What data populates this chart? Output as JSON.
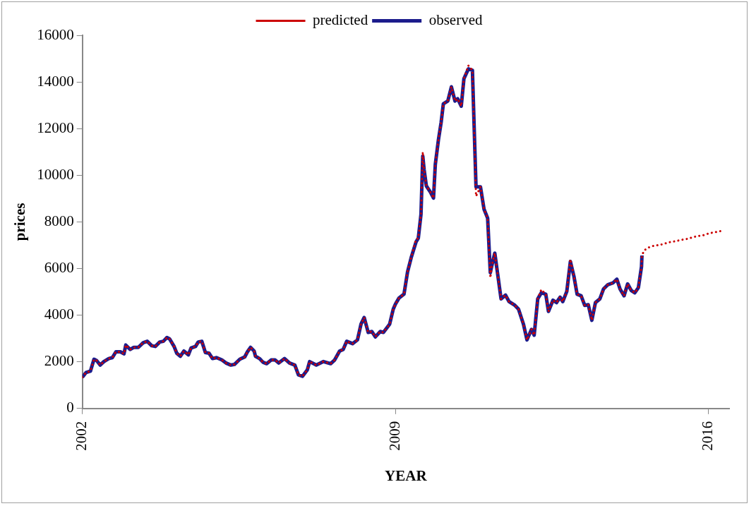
{
  "chart_data": {
    "type": "line",
    "xlabel": "YEAR",
    "ylabel": "prices",
    "xlim": [
      2002,
      2016.46
    ],
    "xticks": [
      2002,
      2009,
      2016
    ],
    "ylim": [
      0,
      16000
    ],
    "yticks": [
      0,
      2000,
      4000,
      6000,
      8000,
      10000,
      12000,
      14000,
      16000
    ],
    "grid": false,
    "legend": "top",
    "marker": "none",
    "series": [
      {
        "name": "observed",
        "color": "#1c1c8c",
        "line_style": "solid",
        "x": [
          2002.0,
          2002.08,
          2002.18,
          2002.26,
          2002.32,
          2002.4,
          2002.48,
          2002.59,
          2002.67,
          2002.75,
          2002.85,
          2002.93,
          2002.97,
          2003.07,
          2003.15,
          2003.25,
          2003.36,
          2003.45,
          2003.55,
          2003.63,
          2003.73,
          2003.81,
          2003.89,
          2003.95,
          2004.05,
          2004.11,
          2004.19,
          2004.27,
          2004.37,
          2004.43,
          2004.53,
          2004.59,
          2004.67,
          2004.75,
          2004.83,
          2004.91,
          2005.0,
          2005.12,
          2005.21,
          2005.32,
          2005.4,
          2005.52,
          2005.63,
          2005.69,
          2005.76,
          2005.84,
          2005.87,
          2005.96,
          2006.04,
          2006.12,
          2006.22,
          2006.31,
          2006.39,
          2006.52,
          2006.63,
          2006.75,
          2006.83,
          2006.92,
          2007.03,
          2007.08,
          2007.23,
          2007.39,
          2007.55,
          2007.64,
          2007.75,
          2007.83,
          2007.91,
          2008.04,
          2008.15,
          2008.23,
          2008.3,
          2008.39,
          2008.47,
          2008.55,
          2008.66,
          2008.73,
          2008.87,
          2008.95,
          2009.0,
          2009.08,
          2009.19,
          2009.27,
          2009.35,
          2009.46,
          2009.51,
          2009.57,
          2009.61,
          2009.64,
          2009.69,
          2009.78,
          2009.85,
          2009.89,
          2009.96,
          2010.02,
          2010.07,
          2010.17,
          2010.25,
          2010.33,
          2010.39,
          2010.47,
          2010.53,
          2010.63,
          2010.72,
          2010.8,
          2010.9,
          2010.98,
          2011.06,
          2011.12,
          2011.16,
          2011.22,
          2011.3,
          2011.36,
          2011.46,
          2011.54,
          2011.67,
          2011.75,
          2011.86,
          2011.94,
          2012.04,
          2012.1,
          2012.18,
          2012.26,
          2012.36,
          2012.42,
          2012.52,
          2012.6,
          2012.68,
          2012.74,
          2012.83,
          2012.91,
          2012.99,
          2013.06,
          2013.15,
          2013.23,
          2013.31,
          2013.39,
          2013.47,
          2013.57,
          2013.65,
          2013.75,
          2013.86,
          2013.95,
          2014.02,
          2014.11,
          2014.19,
          2014.27,
          2014.35,
          2014.43,
          2014.5,
          2014.51
        ],
        "values": [
          1340,
          1540,
          1600,
          2110,
          2050,
          1860,
          2010,
          2140,
          2180,
          2430,
          2430,
          2340,
          2720,
          2530,
          2620,
          2620,
          2820,
          2880,
          2690,
          2660,
          2850,
          2880,
          3040,
          2980,
          2660,
          2370,
          2240,
          2460,
          2300,
          2590,
          2660,
          2850,
          2880,
          2400,
          2370,
          2140,
          2180,
          2080,
          1950,
          1860,
          1890,
          2110,
          2210,
          2430,
          2620,
          2460,
          2240,
          2140,
          1980,
          1920,
          2080,
          2080,
          1950,
          2140,
          1950,
          1860,
          1440,
          1380,
          1660,
          2010,
          1860,
          2010,
          1920,
          2080,
          2460,
          2530,
          2880,
          2780,
          2940,
          3620,
          3900,
          3260,
          3300,
          3070,
          3300,
          3260,
          3620,
          4260,
          4480,
          4740,
          4900,
          5860,
          6460,
          7140,
          7300,
          8320,
          10820,
          10240,
          9540,
          9280,
          9020,
          10460,
          11520,
          12260,
          13060,
          13180,
          13790,
          13180,
          13280,
          12960,
          14140,
          14560,
          14500,
          9500,
          9500,
          8540,
          8160,
          5820,
          6180,
          6660,
          5540,
          4700,
          4860,
          4580,
          4420,
          4260,
          3620,
          2940,
          3390,
          3140,
          4700,
          4960,
          4900,
          4160,
          4640,
          4540,
          4770,
          4580,
          5020,
          6300,
          5660,
          4900,
          4830,
          4420,
          4450,
          3780,
          4540,
          4700,
          5120,
          5310,
          5380,
          5540,
          5120,
          4830,
          5340,
          5060,
          4960,
          5180,
          6080,
          6560
        ]
      },
      {
        "name": "predicted",
        "color": "#cc0000",
        "line_style": "dotted",
        "x": [
          2002.0,
          2002.08,
          2002.18,
          2002.26,
          2002.32,
          2002.4,
          2002.48,
          2002.59,
          2002.67,
          2002.75,
          2002.85,
          2002.93,
          2002.97,
          2003.07,
          2003.15,
          2003.25,
          2003.36,
          2003.45,
          2003.55,
          2003.63,
          2003.73,
          2003.81,
          2003.89,
          2003.95,
          2004.05,
          2004.11,
          2004.19,
          2004.27,
          2004.37,
          2004.43,
          2004.53,
          2004.59,
          2004.67,
          2004.75,
          2004.83,
          2004.91,
          2005.0,
          2005.12,
          2005.21,
          2005.32,
          2005.4,
          2005.52,
          2005.63,
          2005.69,
          2005.76,
          2005.84,
          2005.87,
          2005.96,
          2006.04,
          2006.12,
          2006.22,
          2006.31,
          2006.39,
          2006.52,
          2006.63,
          2006.75,
          2006.83,
          2006.92,
          2007.03,
          2007.08,
          2007.23,
          2007.39,
          2007.55,
          2007.64,
          2007.75,
          2007.83,
          2007.91,
          2008.04,
          2008.15,
          2008.23,
          2008.3,
          2008.39,
          2008.47,
          2008.55,
          2008.66,
          2008.73,
          2008.87,
          2008.95,
          2009.0,
          2009.08,
          2009.19,
          2009.27,
          2009.35,
          2009.46,
          2009.51,
          2009.57,
          2009.61,
          2009.64,
          2009.69,
          2009.78,
          2009.85,
          2009.89,
          2009.96,
          2010.02,
          2010.07,
          2010.17,
          2010.25,
          2010.33,
          2010.39,
          2010.47,
          2010.53,
          2010.63,
          2010.72,
          2010.8,
          2010.9,
          2010.98,
          2011.06,
          2011.12,
          2011.16,
          2011.22,
          2011.3,
          2011.36,
          2011.46,
          2011.54,
          2011.67,
          2011.75,
          2011.86,
          2011.94,
          2012.04,
          2012.1,
          2012.18,
          2012.26,
          2012.36,
          2012.42,
          2012.52,
          2012.6,
          2012.68,
          2012.74,
          2012.83,
          2012.91,
          2012.99,
          2013.06,
          2013.15,
          2013.23,
          2013.31,
          2013.39,
          2013.47,
          2013.57,
          2013.65,
          2013.75,
          2013.86,
          2013.95,
          2014.02,
          2014.11,
          2014.19,
          2014.27,
          2014.35,
          2014.43,
          2014.5,
          2014.51,
          2014.56,
          2014.67,
          2014.78,
          2014.91,
          2015.02,
          2015.15,
          2015.26,
          2015.39,
          2015.5,
          2015.63,
          2015.74,
          2015.87,
          2015.98,
          2016.11,
          2016.22,
          2016.35
        ],
        "values": [
          1340,
          1540,
          1600,
          2110,
          2050,
          1860,
          2010,
          2140,
          2180,
          2430,
          2430,
          2340,
          2720,
          2530,
          2620,
          2620,
          2820,
          2880,
          2690,
          2660,
          2850,
          2880,
          3040,
          2980,
          2660,
          2370,
          2240,
          2460,
          2300,
          2590,
          2660,
          2850,
          2880,
          2400,
          2370,
          2140,
          2180,
          2080,
          1950,
          1860,
          1890,
          2110,
          2210,
          2430,
          2620,
          2460,
          2240,
          2140,
          1980,
          1920,
          2080,
          2080,
          1950,
          2140,
          1950,
          1860,
          1440,
          1380,
          1660,
          2010,
          1860,
          2010,
          1920,
          2080,
          2460,
          2530,
          2880,
          2780,
          2940,
          3620,
          3900,
          3260,
          3300,
          3070,
          3300,
          3260,
          3620,
          4260,
          4480,
          4740,
          4900,
          5860,
          6460,
          7250,
          7300,
          8320,
          11000,
          10240,
          9540,
          9280,
          9020,
          10460,
          11520,
          12260,
          13060,
          13180,
          13790,
          13180,
          13280,
          12960,
          14140,
          14700,
          14500,
          9100,
          9500,
          8540,
          8160,
          5600,
          6180,
          6660,
          5540,
          4700,
          4860,
          4580,
          4420,
          4260,
          3620,
          2940,
          3390,
          3140,
          4700,
          5100,
          4900,
          4160,
          4640,
          4540,
          4770,
          4580,
          5020,
          6400,
          5660,
          4900,
          4830,
          4420,
          4450,
          3780,
          4540,
          4700,
          5120,
          5310,
          5380,
          5540,
          5120,
          4830,
          5340,
          5060,
          4960,
          5180,
          6080,
          6560,
          6780,
          6910,
          6980,
          7010,
          7070,
          7140,
          7170,
          7230,
          7260,
          7330,
          7390,
          7420,
          7490,
          7550,
          7580,
          7650
        ]
      }
    ]
  }
}
